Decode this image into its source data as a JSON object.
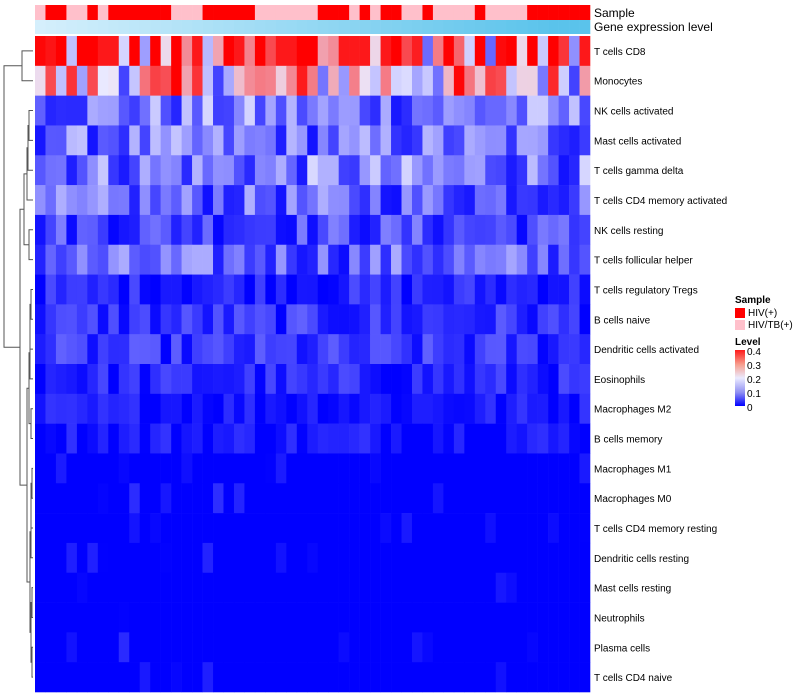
{
  "legend": {
    "sample_title": "Sample",
    "sample_items": [
      {
        "label": "HIV(+)",
        "color": "#ff0000"
      },
      {
        "label": "HIV/TB(+)",
        "color": "#ffc0cb"
      }
    ],
    "level_title": "Level",
    "level_ticks": [
      "0.4",
      "0.3",
      "0.2",
      "0.1",
      "0"
    ]
  },
  "chart_data": {
    "type": "heatmap",
    "title": "",
    "value_range": [
      0,
      0.4
    ],
    "colors": {
      "low": "#0000ff",
      "mid": "#ebebff",
      "high": "#ff0000"
    },
    "annotation_tracks": [
      {
        "name": "Sample",
        "values": [
          "HIV/TB(+)",
          "HIV(+)",
          "HIV(+)",
          "HIV/TB(+)",
          "HIV/TB(+)",
          "HIV(+)",
          "HIV/TB(+)",
          "HIV(+)",
          "HIV(+)",
          "HIV(+)",
          "HIV(+)",
          "HIV(+)",
          "HIV(+)",
          "HIV/TB(+)",
          "HIV/TB(+)",
          "HIV/TB(+)",
          "HIV(+)",
          "HIV(+)",
          "HIV(+)",
          "HIV(+)",
          "HIV(+)",
          "HIV/TB(+)",
          "HIV/TB(+)",
          "HIV/TB(+)",
          "HIV/TB(+)",
          "HIV/TB(+)",
          "HIV/TB(+)",
          "HIV(+)",
          "HIV(+)",
          "HIV(+)",
          "HIV/TB(+)",
          "HIV(+)",
          "HIV/TB(+)",
          "HIV(+)",
          "HIV(+)",
          "HIV/TB(+)",
          "HIV/TB(+)",
          "HIV(+)",
          "HIV/TB(+)",
          "HIV/TB(+)",
          "HIV/TB(+)",
          "HIV/TB(+)",
          "HIV(+)",
          "HIV/TB(+)",
          "HIV/TB(+)",
          "HIV/TB(+)",
          "HIV/TB(+)",
          "HIV(+)",
          "HIV(+)",
          "HIV(+)",
          "HIV(+)",
          "HIV(+)",
          "HIV(+)"
        ]
      },
      {
        "name": "Gene expression level",
        "values": [
          0.02,
          0.04,
          0.06,
          0.08,
          0.1,
          0.12,
          0.14,
          0.16,
          0.18,
          0.2,
          0.22,
          0.24,
          0.26,
          0.28,
          0.3,
          0.32,
          0.34,
          0.36,
          0.38,
          0.4,
          0.42,
          0.44,
          0.46,
          0.48,
          0.5,
          0.52,
          0.54,
          0.56,
          0.58,
          0.6,
          0.62,
          0.64,
          0.66,
          0.68,
          0.7,
          0.72,
          0.74,
          0.76,
          0.78,
          0.8,
          0.82,
          0.84,
          0.86,
          0.88,
          0.9,
          0.92,
          0.94,
          0.96,
          0.98,
          1.0,
          1.0,
          1.0,
          1.0
        ]
      }
    ],
    "rows": [
      "T cells CD8",
      "Monocytes",
      "NK cells activated",
      "Mast cells activated",
      "T cells gamma delta",
      "T cells CD4 memory activated",
      "NK cells resting",
      "T cells follicular helper",
      "T cells regulatory  Tregs",
      "B cells naive",
      "Dendritic cells activated",
      "Eosinophils",
      "Macrophages M2",
      "B cells memory",
      "Macrophages M1",
      "Macrophages M0",
      "T cells CD4 memory resting",
      "Dendritic cells resting",
      "Mast cells resting",
      "Neutrophils",
      "Plasma cells",
      "T cells CD4 naive"
    ],
    "row_means": [
      0.32,
      0.23,
      0.1,
      0.09,
      0.1,
      0.08,
      0.06,
      0.08,
      0.03,
      0.04,
      0.04,
      0.03,
      0.02,
      0.02,
      0.01,
      0.015,
      0.005,
      0.01,
      0.003,
      0.002,
      0.015,
      0.01
    ],
    "n_columns": 53,
    "row_dendrogram": "hierarchical clustering (left)"
  }
}
